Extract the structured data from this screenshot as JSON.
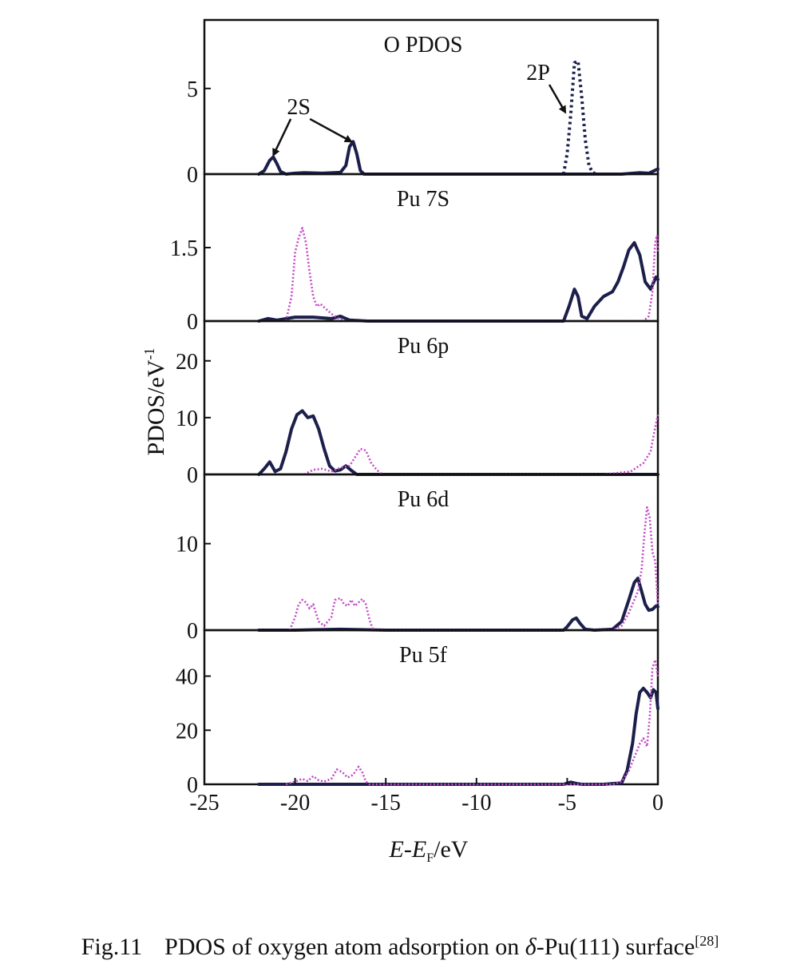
{
  "caption": {
    "label": "Fig.11",
    "text_before": "PDOS of oxygen atom adsorption on ",
    "delta": "δ",
    "text_after": "-Pu(111) surface",
    "ref": "[28]"
  },
  "axes": {
    "ylabel_base": "PDOS/eV",
    "ylabel_exp": "-1",
    "xlabel_E": "E",
    "xlabel_dash": "-",
    "xlabel_EF": "E",
    "xlabel_sub": "F",
    "xlabel_unit": "/eV",
    "xlim": [
      -25,
      0
    ],
    "xticks": [
      -25,
      -20,
      -15,
      -10,
      -5,
      0
    ],
    "xtick_labels": [
      "-25",
      "-20",
      "-15",
      "-10",
      "-5",
      "0"
    ]
  },
  "colors": {
    "solid": "#1b1f4a",
    "dotted": "#c44ac6",
    "frame": "#111111"
  },
  "chart_data": [
    {
      "type": "line",
      "title": "O PDOS",
      "ylim": [
        0,
        9
      ],
      "yticks": [
        0,
        5
      ],
      "ytick_labels": [
        "0",
        "5"
      ],
      "annotations": [
        {
          "text": "2S",
          "x": -19.8,
          "y": 3.5,
          "arrows_to": [
            [
              -21.2,
              1.1
            ],
            [
              -16.9,
              1.9
            ]
          ]
        },
        {
          "text": "2P",
          "x": -6.6,
          "y": 5.5,
          "arrows_to": [
            [
              -5.1,
              3.6
            ]
          ]
        }
      ],
      "series": [
        {
          "style": "solid",
          "x": [
            -22.0,
            -21.7,
            -21.4,
            -21.2,
            -21.0,
            -20.8,
            -20.5,
            -20.0,
            -19.5,
            -18.5,
            -17.5,
            -17.2,
            -17.0,
            -16.8,
            -16.6,
            -16.4,
            -16.2,
            -15.5,
            -10,
            -5.0,
            -2.0,
            -1.0,
            -0.5,
            -0.2,
            0
          ],
          "y": [
            0,
            0.2,
            0.8,
            1.0,
            0.6,
            0.15,
            0,
            0.05,
            0.08,
            0.05,
            0.1,
            0.5,
            1.6,
            1.9,
            1.2,
            0.2,
            0,
            0,
            0,
            0,
            0,
            0.08,
            0.05,
            0.2,
            0.3
          ]
        },
        {
          "style": "dotted",
          "x": [
            -5.2,
            -5.0,
            -4.8,
            -4.6,
            -4.4,
            -4.2,
            -4.0,
            -3.8,
            -3.6,
            -3.4
          ],
          "y": [
            0,
            1.2,
            3.5,
            6.5,
            6.6,
            4.5,
            2.0,
            0.5,
            0.1,
            0
          ]
        }
      ]
    },
    {
      "type": "line",
      "title": "Pu 7S",
      "ylim": [
        0,
        3
      ],
      "yticks": [
        0,
        1.5
      ],
      "ytick_labels": [
        "0",
        "1.5"
      ],
      "series": [
        {
          "style": "solid",
          "x": [
            -22.0,
            -21.5,
            -21.0,
            -20.0,
            -19.0,
            -18.0,
            -17.5,
            -17.0,
            -16.0,
            -10,
            -5.2,
            -4.9,
            -4.6,
            -4.4,
            -4.2,
            -3.9,
            -3.5,
            -3.0,
            -2.5,
            -2.2,
            -1.9,
            -1.6,
            -1.3,
            -1.0,
            -0.7,
            -0.4,
            -0.1,
            0
          ],
          "y": [
            0,
            0.05,
            0.02,
            0.08,
            0.08,
            0.05,
            0.1,
            0.02,
            0,
            0,
            0,
            0.3,
            0.65,
            0.5,
            0.1,
            0.05,
            0.3,
            0.5,
            0.6,
            0.8,
            1.1,
            1.45,
            1.6,
            1.35,
            0.8,
            0.65,
            0.9,
            0.85
          ]
        },
        {
          "style": "dotted",
          "x": [
            -20.5,
            -20.2,
            -20.0,
            -19.8,
            -19.6,
            -19.4,
            -19.2,
            -19.0,
            -18.8,
            -18.6,
            -18.3,
            -18.0,
            -17.6,
            -17.2,
            -0.8,
            -0.5,
            -0.3,
            -0.15,
            -0.05,
            0
          ],
          "y": [
            0,
            0.5,
            1.4,
            1.7,
            1.9,
            1.6,
            1.0,
            0.5,
            0.3,
            0.35,
            0.25,
            0.15,
            0.05,
            0,
            0,
            0.1,
            0.6,
            1.6,
            1.75,
            1.4
          ]
        }
      ]
    },
    {
      "type": "line",
      "title": "Pu 6p",
      "ylim": [
        0,
        27
      ],
      "yticks": [
        0,
        10,
        20
      ],
      "ytick_labels": [
        "0",
        "10",
        "20"
      ],
      "series": [
        {
          "style": "solid",
          "x": [
            -22.0,
            -21.7,
            -21.4,
            -21.1,
            -20.8,
            -20.5,
            -20.2,
            -19.9,
            -19.6,
            -19.3,
            -19.0,
            -18.7,
            -18.4,
            -18.1,
            -17.8,
            -17.5,
            -17.2,
            -16.9,
            -16.6,
            -16.3,
            -15.5,
            -5,
            0
          ],
          "y": [
            0,
            1.0,
            2.2,
            0.5,
            1.0,
            4.0,
            8.0,
            10.5,
            11.2,
            10.0,
            10.3,
            8.0,
            4.5,
            1.5,
            0.6,
            0.8,
            1.5,
            0.7,
            0,
            0,
            0,
            0,
            0
          ]
        },
        {
          "style": "dotted",
          "x": [
            -19.5,
            -19.0,
            -18.5,
            -18.0,
            -17.5,
            -17.0,
            -16.7,
            -16.4,
            -16.1,
            -15.8,
            -15.5,
            -15.2,
            -3.0,
            -1.5,
            -0.8,
            -0.4,
            -0.2,
            0
          ],
          "y": [
            0,
            0.8,
            1.0,
            0.5,
            1.2,
            1.5,
            3.0,
            4.5,
            4.2,
            2.0,
            0.8,
            0,
            0,
            0.5,
            2.0,
            4.0,
            7.5,
            10.5
          ]
        }
      ]
    },
    {
      "type": "line",
      "title": "Pu 6d",
      "ylim": [
        0,
        18
      ],
      "yticks": [
        0,
        10
      ],
      "ytick_labels": [
        "0",
        "10"
      ],
      "series": [
        {
          "style": "solid",
          "x": [
            -22.0,
            -20.0,
            -17.5,
            -15.0,
            -10.0,
            -5.2,
            -5.0,
            -4.7,
            -4.5,
            -4.3,
            -4.0,
            -3.5,
            -2.5,
            -2.0,
            -1.6,
            -1.3,
            -1.1,
            -0.9,
            -0.7,
            -0.5,
            -0.3,
            -0.1,
            0
          ],
          "y": [
            0,
            0,
            0.1,
            0,
            0,
            0,
            0.4,
            1.2,
            1.4,
            0.8,
            0.1,
            0,
            0.1,
            1.0,
            3.5,
            5.5,
            6.0,
            4.5,
            3.0,
            2.3,
            2.4,
            2.8,
            2.7
          ]
        },
        {
          "style": "dotted",
          "x": [
            -20.3,
            -20.0,
            -19.8,
            -19.6,
            -19.4,
            -19.2,
            -19.0,
            -18.7,
            -18.4,
            -18.0,
            -17.8,
            -17.5,
            -17.3,
            -17.1,
            -16.9,
            -16.7,
            -16.5,
            -16.3,
            -16.1,
            -15.9,
            -15.7,
            -2.5,
            -2.0,
            -1.6,
            -1.3,
            -1.1,
            -0.9,
            -0.75,
            -0.6,
            -0.45,
            -0.3,
            -0.15,
            0
          ],
          "y": [
            0,
            1.5,
            3.0,
            3.5,
            3.2,
            2.5,
            3.0,
            1.0,
            0.5,
            1.5,
            3.5,
            3.7,
            3.0,
            2.8,
            3.5,
            2.8,
            3.2,
            3.6,
            3.0,
            1.2,
            0,
            0,
            0.5,
            2.0,
            3.5,
            4.5,
            7.0,
            11.0,
            14.2,
            13.0,
            9.0,
            8.0,
            3.0
          ]
        }
      ]
    },
    {
      "type": "line",
      "title": "Pu 5f",
      "ylim": [
        0,
        57
      ],
      "yticks": [
        0,
        20,
        40
      ],
      "ytick_labels": [
        "0",
        "20",
        "40"
      ],
      "series": [
        {
          "style": "solid",
          "x": [
            -22.0,
            -15.0,
            -10.0,
            -5.2,
            -4.8,
            -4.5,
            -4.2,
            -3.0,
            -2.0,
            -1.7,
            -1.4,
            -1.2,
            -1.0,
            -0.8,
            -0.6,
            -0.4,
            -0.25,
            -0.1,
            0
          ],
          "y": [
            0,
            0,
            0,
            0,
            0.8,
            0.3,
            0,
            0,
            0.5,
            5.0,
            15.0,
            26.0,
            34.0,
            35.5,
            34.0,
            32.0,
            35.0,
            34.0,
            28.0
          ]
        },
        {
          "style": "dotted",
          "x": [
            -20.5,
            -20.0,
            -19.6,
            -19.3,
            -19.0,
            -18.7,
            -18.4,
            -18.0,
            -17.7,
            -17.4,
            -17.1,
            -16.8,
            -16.5,
            -16.3,
            -16.1,
            -15.9,
            -2.5,
            -2.0,
            -1.6,
            -1.3,
            -1.0,
            -0.8,
            -0.6,
            -0.45,
            -0.3,
            -0.15,
            0
          ],
          "y": [
            0,
            1.0,
            2.0,
            1.2,
            3.0,
            1.5,
            1.0,
            2.0,
            5.5,
            4.5,
            2.5,
            3.5,
            6.5,
            4.5,
            1.0,
            0,
            0,
            1.0,
            5.0,
            10.0,
            15.0,
            17.0,
            14.0,
            25.0,
            43.0,
            46.0,
            40.0
          ]
        }
      ]
    }
  ]
}
